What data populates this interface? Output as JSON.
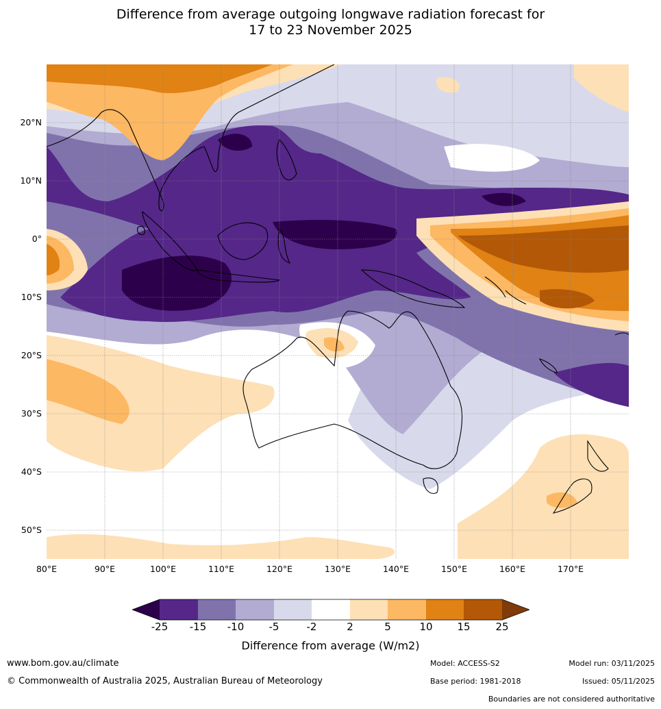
{
  "title_line1": "Difference from average outgoing longwave radiation forecast for",
  "title_line2": "17 to 23 November 2025",
  "latitude_labels": [
    "20°N",
    "10°N",
    "0°",
    "10°S",
    "20°S",
    "30°S",
    "40°S",
    "50°S"
  ],
  "longitude_labels": [
    "80°E",
    "90°E",
    "100°E",
    "110°E",
    "120°E",
    "130°E",
    "140°E",
    "150°E",
    "160°E",
    "170°E"
  ],
  "map_extent": {
    "lon_min": 80,
    "lon_max": 180,
    "lat_min": -55,
    "lat_max": 30
  },
  "colorbar": {
    "tick_labels": [
      "-25",
      "-15",
      "-10",
      "-5",
      "-2",
      "2",
      "5",
      "10",
      "15",
      "25"
    ],
    "label": "Difference from average (W/m2)",
    "colors": [
      "#2d004b",
      "#542788",
      "#8073ac",
      "#b2abd2",
      "#d8daeb",
      "#ffffff",
      "#fee0b6",
      "#fdb863",
      "#e08214",
      "#b35806",
      "#7f3b08"
    ]
  },
  "footer": {
    "website": "www.bom.gov.au/climate",
    "copyright": "© Commonwealth of Australia 2025, Australian Bureau of Meteorology",
    "model": "Model: ACCESS-S2",
    "base_period": "Base period: 1981-2018",
    "model_run": "Model run: 03/11/2025",
    "issued": "Issued: 05/11/2025",
    "boundaries_note": "Boundaries are not considered authoritative"
  }
}
